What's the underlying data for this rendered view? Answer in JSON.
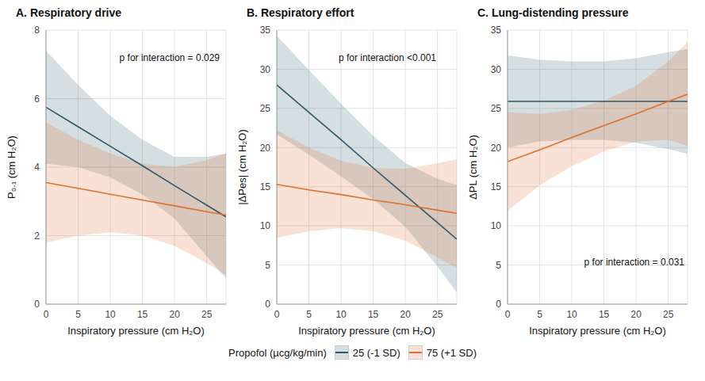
{
  "chart_data": [
    {
      "type": "line",
      "title": "A. Respiratory drive",
      "x_label": "Inspiratory pressure (cm H₂O)",
      "y_label": "P₀.₁ (cm H₂O)",
      "annotation": "p for interaction = 0.029",
      "x": [
        0,
        5,
        10,
        15,
        20,
        25,
        28
      ],
      "xlim": [
        0,
        28
      ],
      "xticks": [
        0,
        5,
        10,
        15,
        20,
        25
      ],
      "ylim": [
        0,
        8
      ],
      "yticks": [
        0,
        2,
        4,
        6,
        8
      ],
      "grid": true,
      "series": [
        {
          "name": "25 (-1 SD)",
          "color": "#2e5866",
          "values": [
            5.75,
            5.18,
            4.61,
            4.04,
            3.46,
            2.89,
            2.55
          ],
          "lower": [
            4.1,
            4.0,
            3.7,
            3.2,
            2.5,
            1.4,
            0.75
          ],
          "upper": [
            7.4,
            6.4,
            5.5,
            4.8,
            4.3,
            4.3,
            4.4
          ]
        },
        {
          "name": "75 (+1 SD)",
          "color": "#e0702c",
          "values": [
            3.55,
            3.38,
            3.21,
            3.04,
            2.87,
            2.7,
            2.6
          ],
          "lower": [
            1.8,
            2.0,
            2.1,
            2.0,
            1.7,
            1.2,
            0.85
          ],
          "upper": [
            5.3,
            4.8,
            4.4,
            4.1,
            4.0,
            4.2,
            4.4
          ]
        }
      ]
    },
    {
      "type": "line",
      "title": "B. Respiratory effort",
      "x_label": "Inspiratory pressure (cm H₂O)",
      "y_label": "|ΔPes| (cm H₂O)",
      "annotation": "p for interaction <0.001",
      "x": [
        0,
        5,
        10,
        15,
        20,
        25,
        28
      ],
      "xlim": [
        0,
        28
      ],
      "xticks": [
        0,
        5,
        10,
        15,
        20,
        25
      ],
      "ylim": [
        0,
        35
      ],
      "yticks": [
        0,
        5,
        10,
        15,
        20,
        25,
        30,
        35
      ],
      "grid": true,
      "series": [
        {
          "name": "25 (-1 SD)",
          "color": "#2e5866",
          "values": [
            28,
            24.5,
            21,
            17.4,
            13.9,
            10.4,
            8.3
          ],
          "lower": [
            21.7,
            19.1,
            16.3,
            13.4,
            9.9,
            4.8,
            1.5
          ],
          "upper": [
            34.3,
            29.9,
            25.6,
            21.5,
            18,
            16,
            15.2
          ]
        },
        {
          "name": "75 (+1 SD)",
          "color": "#e0702c",
          "values": [
            15.3,
            14.6,
            14,
            13.3,
            12.7,
            12,
            11.6
          ],
          "lower": [
            8.5,
            9.3,
            9.7,
            9.3,
            8.1,
            6,
            4.6
          ],
          "upper": [
            22.2,
            20,
            18.3,
            17.4,
            17.3,
            18,
            18.5
          ]
        }
      ]
    },
    {
      "type": "line",
      "title": "C. Lung-distending pressure",
      "x_label": "Inspiratory pressure (cm H₂O)",
      "y_label": "ΔPL (cm H₂O)",
      "annotation": "p for interaction = 0.031",
      "x": [
        0,
        5,
        10,
        15,
        20,
        25,
        28
      ],
      "xlim": [
        0,
        28
      ],
      "xticks": [
        0,
        5,
        10,
        15,
        20,
        25
      ],
      "ylim": [
        0,
        35
      ],
      "yticks": [
        0,
        5,
        10,
        15,
        20,
        25,
        30,
        35
      ],
      "grid": true,
      "series": [
        {
          "name": "25 (-1 SD)",
          "color": "#2e5866",
          "values": [
            25.9,
            25.9,
            25.9,
            25.9,
            25.9,
            25.9,
            25.9
          ],
          "lower": [
            20,
            20.8,
            21,
            21,
            20.6,
            19.8,
            19.2
          ],
          "upper": [
            31.8,
            31.2,
            31,
            31,
            31.4,
            32.2,
            32.6
          ]
        },
        {
          "name": "75 (+1 SD)",
          "color": "#e0702c",
          "values": [
            18.2,
            19.7,
            21.3,
            22.8,
            24.3,
            25.9,
            26.8
          ],
          "lower": [
            11.9,
            15.2,
            17.6,
            19.5,
            20.8,
            21,
            20.2
          ],
          "upper": [
            24.5,
            24.3,
            24.8,
            26,
            27.9,
            31,
            33.5
          ]
        }
      ]
    }
  ],
  "legend_title": "Propofol (µcg/kg/min)",
  "legend": "bottom"
}
